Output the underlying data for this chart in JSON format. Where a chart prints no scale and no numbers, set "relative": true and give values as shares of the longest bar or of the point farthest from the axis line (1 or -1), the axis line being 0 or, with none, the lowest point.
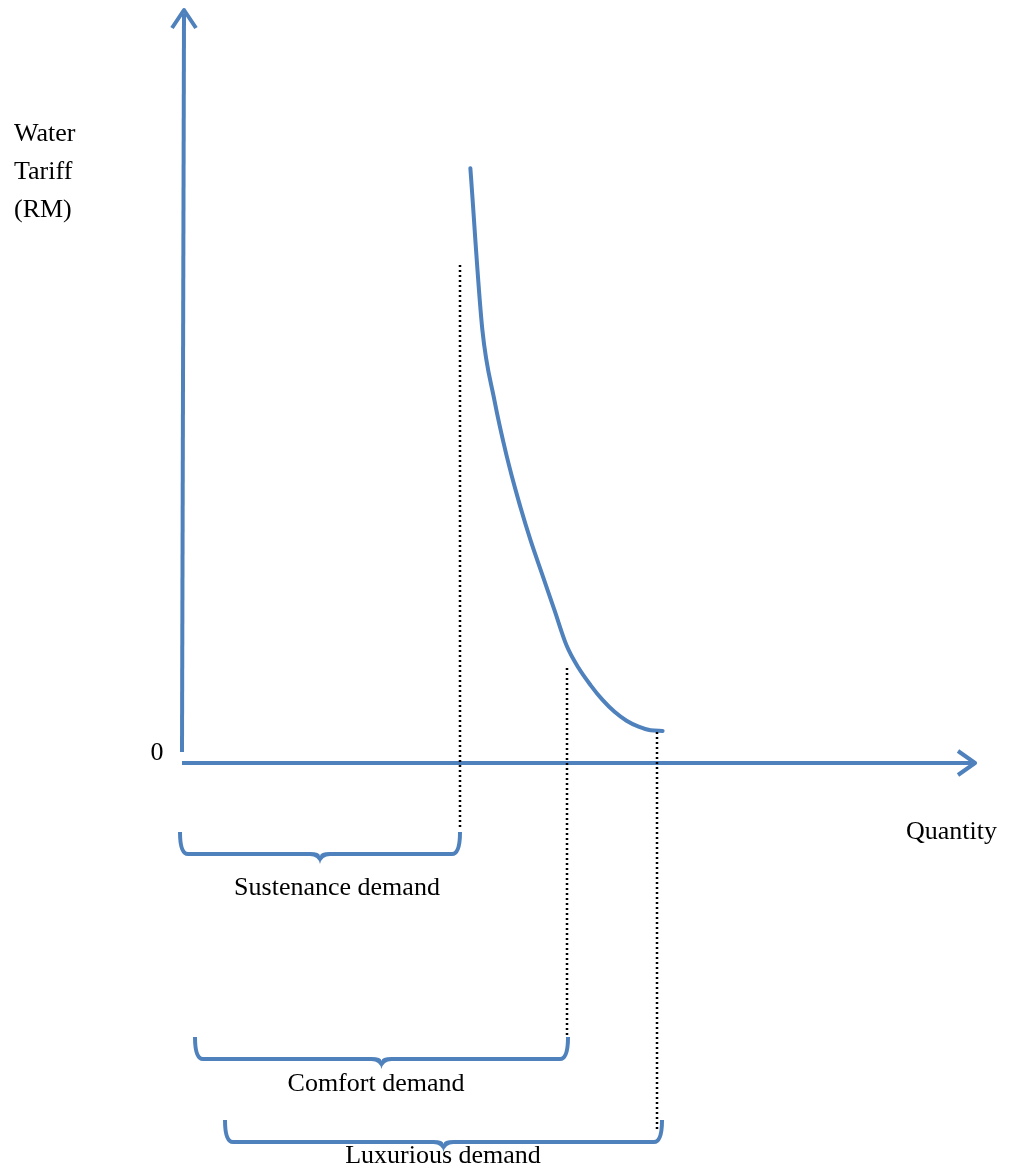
{
  "chart_data": {
    "type": "line",
    "relative": true,
    "ylabel": "Water Tariff (RM)",
    "xlabel": "Quantity",
    "color": "#4f81bd",
    "marker": "none",
    "line_style": "solid",
    "categories": [
      null,
      null,
      null,
      null,
      null,
      null,
      null,
      null,
      null,
      null,
      null,
      null,
      null,
      null,
      null,
      null,
      null,
      null,
      null,
      null,
      null,
      null,
      null,
      null,
      null,
      null,
      null,
      null,
      null,
      null,
      null,
      null,
      null,
      null,
      null,
      null,
      null,
      null,
      null,
      null,
      null,
      null,
      null,
      null,
      null,
      null,
      null,
      null,
      null,
      null,
      null,
      null,
      null,
      null,
      null,
      null,
      null,
      null,
      null,
      null,
      null,
      null,
      null,
      null,
      null,
      null,
      null
    ],
    "values": [
      null,
      null,
      null,
      null,
      null,
      null,
      null,
      null,
      null,
      null,
      null,
      null,
      null,
      null,
      null,
      null,
      null,
      null,
      null,
      null,
      null,
      null,
      null,
      null,
      1.0,
      0.728,
      0.61,
      0.518,
      0.442,
      0.375,
      0.316,
      0.257,
      0.198,
      0.16,
      0.131,
      0.106,
      0.086,
      0.071,
      0.061,
      0.055,
      0.054,
      null,
      null,
      null,
      null,
      null,
      null,
      null,
      null,
      null,
      null,
      null,
      null,
      null,
      null,
      null,
      null,
      null,
      null,
      null,
      null,
      null,
      null,
      null,
      null,
      null,
      null
    ],
    "annotations": [
      "0",
      "Sustenance demand",
      "Comfort demand",
      "Luxurious demand"
    ]
  }
}
